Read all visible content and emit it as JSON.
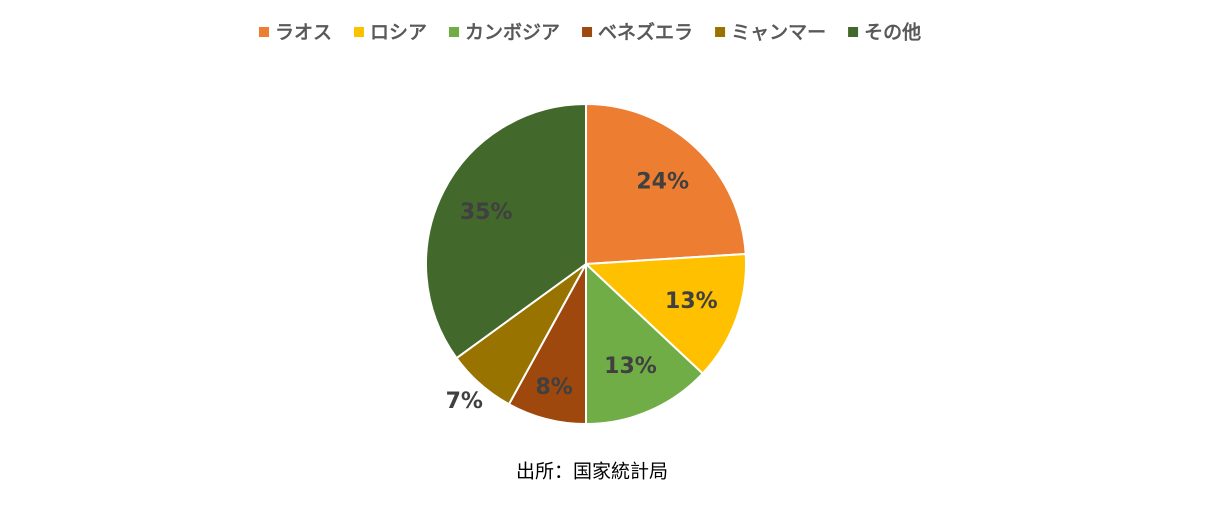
{
  "chart_data": {
    "type": "pie",
    "categories": [
      "ラオス",
      "ロシア",
      "カンボジア",
      "ベネズエラ",
      "ミャンマー",
      "その他"
    ],
    "values": [
      24,
      13,
      13,
      8,
      7,
      35
    ],
    "value_labels": [
      "24%",
      "13%",
      "13%",
      "8%",
      "7%",
      "35%"
    ],
    "colors": [
      "#ED7D31",
      "#FFC000",
      "#70AD47",
      "#9E480E",
      "#997300",
      "#43682B"
    ],
    "legend": "top",
    "source": "出所：国家統計局"
  }
}
